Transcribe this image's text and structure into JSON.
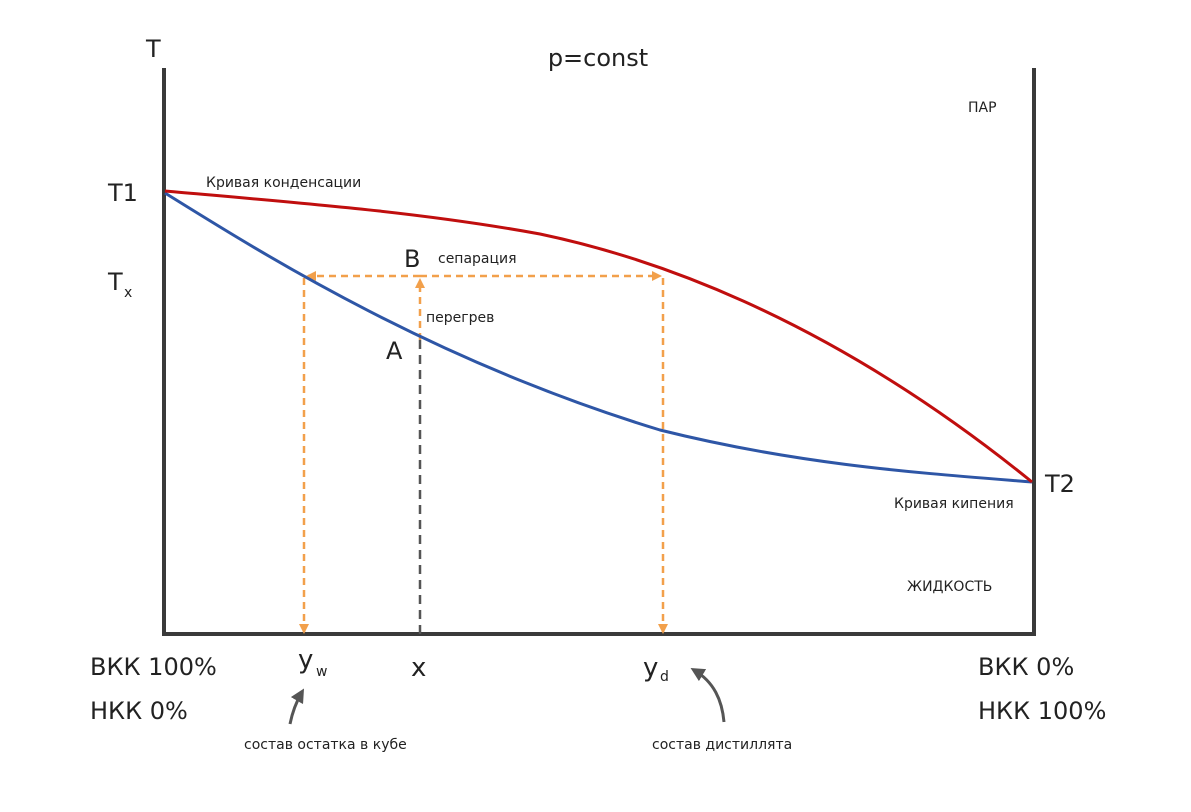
{
  "title": "p=const",
  "axis": {
    "y_label": "T",
    "t1": "T1",
    "t2": "T2",
    "tx_main": "T",
    "tx_sub": "x"
  },
  "regions": {
    "vapor": "ПАР",
    "liquid": "ЖИДКОСТЬ"
  },
  "curves": {
    "condensation": {
      "label": "Кривая конденсации",
      "color": "#c00e0e"
    },
    "boiling": {
      "label": "Кривая кипения",
      "color": "#2e56a6"
    }
  },
  "points": {
    "a": "A",
    "b": "B"
  },
  "annotations": {
    "separation": "сепарация",
    "overheat": "перегрев"
  },
  "x_axis": {
    "yw_main": "y",
    "yw_sub": "w",
    "x": "x",
    "yd_main": "y",
    "yd_sub": "d",
    "left_line1": "ВКК 100%",
    "left_line2": "НКК 0%",
    "right_line1": "ВКК 0%",
    "right_line2": "НКК 100%"
  },
  "callouts": {
    "residue": "состав остатка в кубе",
    "distillate": "состав дистиллята"
  },
  "colors": {
    "axis": "#3a3a3a",
    "guide": "#f2a04b",
    "dash_x": "#555555"
  }
}
